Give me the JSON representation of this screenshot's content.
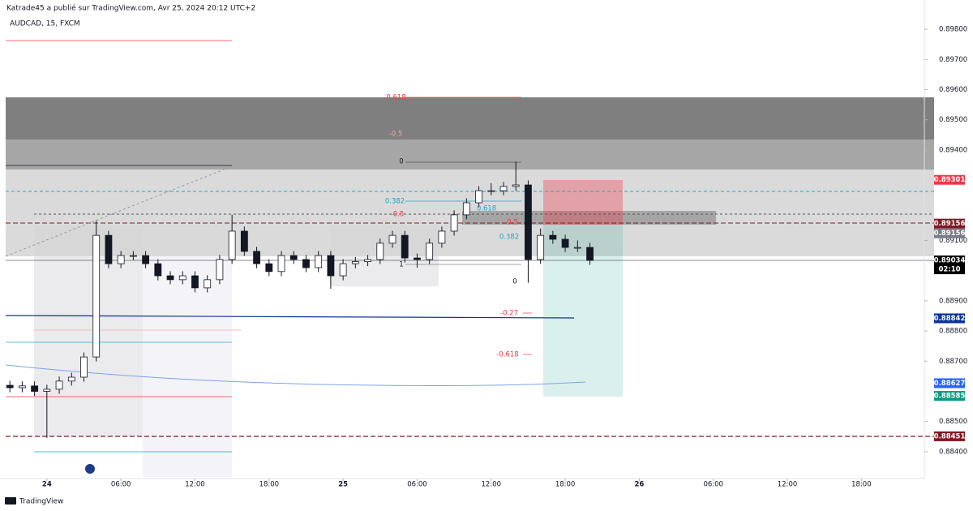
{
  "header": {
    "publisher": "Katrade45 a publié sur TradingView.com, Avr 25, 2024 20:12 UTC+2"
  },
  "footer": {
    "brand": "TradingView"
  },
  "chart_data": {
    "type": "candlestick",
    "title": "AUDCAD, 15, FXCM",
    "up_color": "#ffffff",
    "down_color": "#131722",
    "open": [
      0.8862,
      0.88612,
      0.88618,
      0.886,
      0.88607,
      0.88634,
      0.88647,
      0.88714,
      0.89117,
      0.89023,
      0.8905,
      0.8905,
      0.89023,
      0.88983,
      0.8897,
      0.88983,
      0.88943,
      0.8897,
      0.89037,
      0.89131,
      0.89064,
      0.89023,
      0.88997,
      0.8905,
      0.89037,
      0.8901,
      0.8905,
      0.88983,
      0.89023,
      0.8903,
      0.89037,
      0.89091,
      0.89117,
      0.89042,
      0.89037,
      0.89091,
      0.89131,
      0.89185,
      0.89225,
      0.89265,
      0.89265,
      0.89279,
      0.89284,
      0.89037,
      0.89117,
      0.89104,
      0.89077,
      0.89077
    ],
    "high": [
      0.88635,
      0.88633,
      0.88633,
      0.88622,
      0.88649,
      0.88662,
      0.88729,
      0.89165,
      0.89132,
      0.89065,
      0.89065,
      0.89065,
      0.89038,
      0.88998,
      0.88998,
      0.88998,
      0.88985,
      0.89052,
      0.89185,
      0.89146,
      0.89079,
      0.89038,
      0.89065,
      0.89065,
      0.89052,
      0.89065,
      0.89065,
      0.89038,
      0.89045,
      0.89052,
      0.89106,
      0.89132,
      0.89132,
      0.89057,
      0.89106,
      0.89146,
      0.892,
      0.8924,
      0.8928,
      0.8929,
      0.89294,
      0.89362,
      0.89299,
      0.8914,
      0.89132,
      0.89119,
      0.891,
      0.89092
    ],
    "low": [
      0.88597,
      0.88597,
      0.88585,
      0.88446,
      0.88592,
      0.88619,
      0.88632,
      0.88699,
      0.89008,
      0.89008,
      0.89035,
      0.89008,
      0.88968,
      0.88955,
      0.88955,
      0.88928,
      0.88928,
      0.88955,
      0.89022,
      0.89049,
      0.89008,
      0.88982,
      0.88982,
      0.89022,
      0.88995,
      0.88995,
      0.8894,
      0.88968,
      0.89008,
      0.89015,
      0.89022,
      0.89076,
      0.89027,
      0.8901,
      0.89022,
      0.89076,
      0.89116,
      0.8917,
      0.8921,
      0.8925,
      0.8925,
      0.89264,
      0.8896,
      0.89022,
      0.89089,
      0.89062,
      0.89062,
      0.89019
    ],
    "close": [
      0.88612,
      0.88618,
      0.886,
      0.88607,
      0.88634,
      0.88647,
      0.88714,
      0.89117,
      0.89023,
      0.8905,
      0.8905,
      0.89023,
      0.88983,
      0.8897,
      0.88983,
      0.88943,
      0.8897,
      0.89037,
      0.89131,
      0.89064,
      0.89023,
      0.88997,
      0.8905,
      0.89037,
      0.8901,
      0.8905,
      0.88983,
      0.89023,
      0.8903,
      0.89037,
      0.89091,
      0.89117,
      0.89042,
      0.89037,
      0.89091,
      0.89131,
      0.89185,
      0.89225,
      0.89265,
      0.89265,
      0.89279,
      0.89284,
      0.89037,
      0.89117,
      0.89104,
      0.89077,
      0.89077,
      0.89034
    ],
    "ylim": [
      0.88311,
      0.89897
    ],
    "yticks": [
      {
        "value": 0.898,
        "label": "0.89800"
      },
      {
        "value": 0.897,
        "label": "0.89700"
      },
      {
        "value": 0.896,
        "label": "0.89600"
      },
      {
        "value": 0.895,
        "label": "0.89500"
      },
      {
        "value": 0.894,
        "label": "0.89400"
      },
      {
        "value": 0.891,
        "label": "0.89100"
      },
      {
        "value": 0.889,
        "label": "0.88900"
      },
      {
        "value": 0.888,
        "label": "0.88800"
      },
      {
        "value": 0.887,
        "label": "0.88700"
      },
      {
        "value": 0.885,
        "label": "0.88500"
      },
      {
        "value": 0.884,
        "label": "0.88400"
      }
    ],
    "xlim": [
      -3.8,
      71.1
    ],
    "xticks": [
      {
        "value": 0,
        "label": "24"
      },
      {
        "value": 6,
        "label": "06:00"
      },
      {
        "value": 12,
        "label": "12:00"
      },
      {
        "value": 18,
        "label": "18:00"
      },
      {
        "value": 24,
        "label": "25"
      },
      {
        "value": 30,
        "label": "06:00"
      },
      {
        "value": 36,
        "label": "12:00"
      },
      {
        "value": 42,
        "label": "18:00"
      },
      {
        "value": 48,
        "label": "26"
      },
      {
        "value": 54,
        "label": "06:00"
      },
      {
        "value": 60,
        "label": "12:00"
      },
      {
        "value": 66,
        "label": "18:00"
      }
    ],
    "price_tags": [
      {
        "value": 0.89301,
        "color": "#f23645"
      },
      {
        "value": 0.89156,
        "color": "#801922"
      },
      {
        "value": 0.89156,
        "color": "#787b86"
      },
      {
        "value": 0.89034,
        "color": "#000000"
      },
      {
        "value": 0.88842,
        "color": "#0c3299"
      },
      {
        "value": 0.88627,
        "color": "#2962ff"
      },
      {
        "value": 0.88585,
        "color": "#089981"
      },
      {
        "value": 0.88451,
        "color": "#801922"
      }
    ],
    "countdown": "02:10",
    "fib_labels": [
      "-0.618",
      "-0.5",
      "0",
      "0.382",
      "-0.5",
      "0.618",
      "0.5",
      "0.382",
      "1",
      "0",
      "-0.27",
      "-0.618"
    ]
  }
}
